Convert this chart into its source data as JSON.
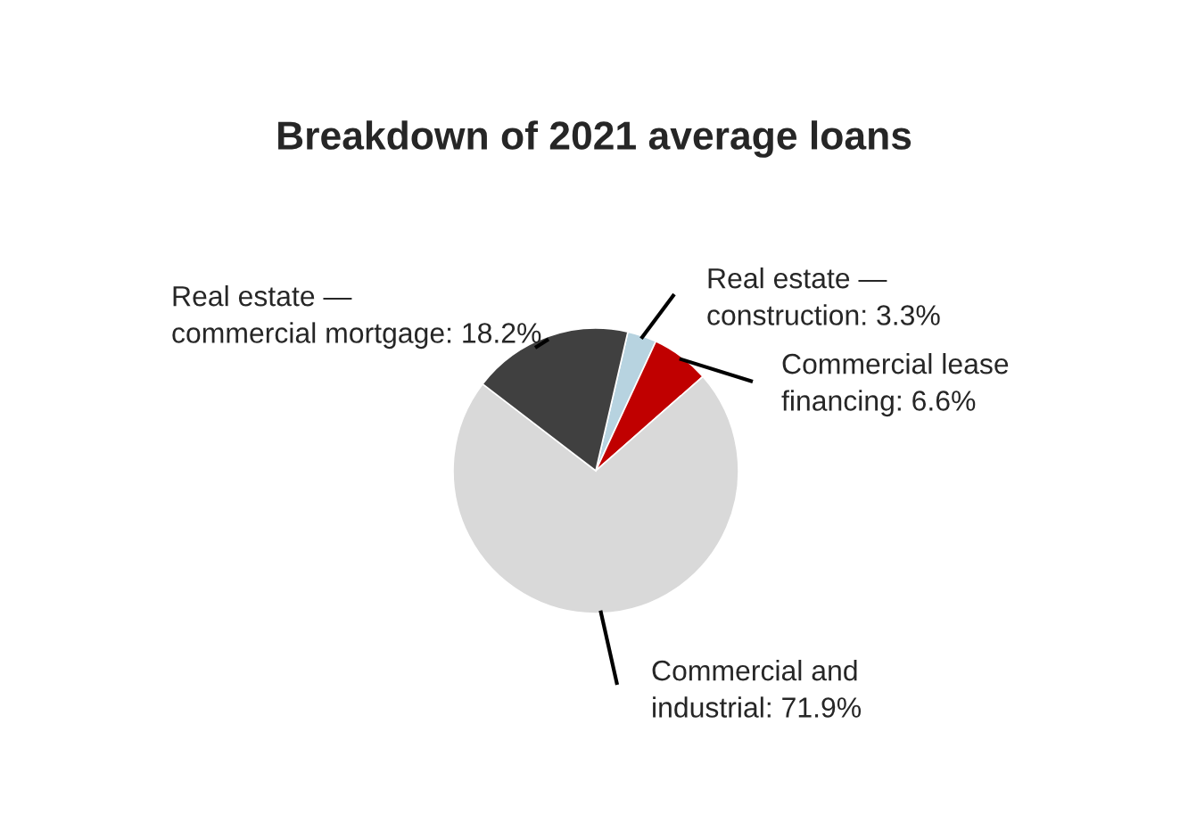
{
  "chart_data": {
    "type": "pie",
    "title": "Breakdown of 2021 average loans",
    "categories": [
      "Real estate —\nconstruction",
      "Commercial lease\nfinancing",
      "Commercial and\nindustrial",
      "Real estate —\ncommercial mortgage"
    ],
    "values": [
      3.3,
      6.6,
      71.9,
      18.2
    ],
    "value_labels": [
      "3.3%",
      "6.6%",
      "71.9%",
      "18.2%"
    ],
    "colors": [
      "#b7d3e0",
      "#c00000",
      "#d9d9d9",
      "#404040"
    ]
  }
}
